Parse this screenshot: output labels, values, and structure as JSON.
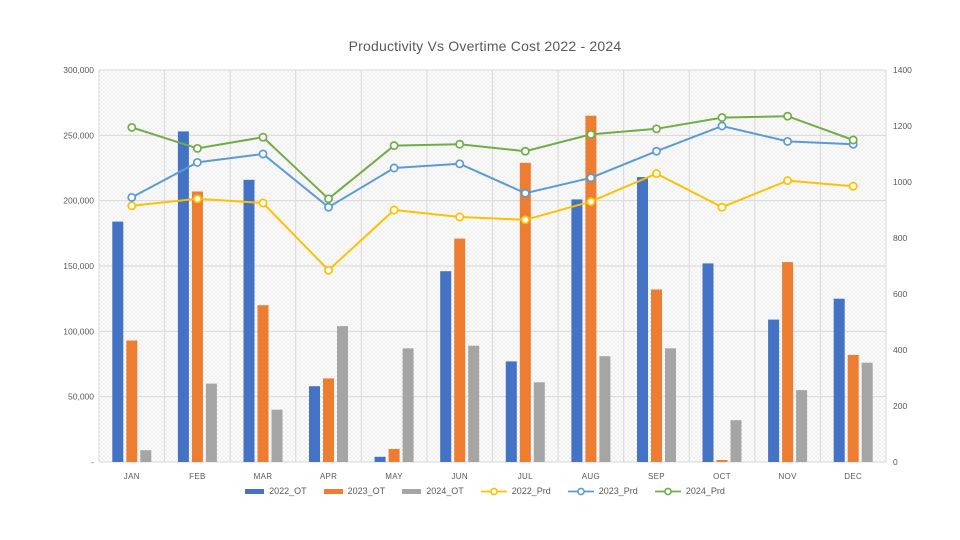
{
  "chart_data": {
    "type": "combo-bar-line",
    "title": "Productivity Vs Overtime Cost 2022 - 2024",
    "categories": [
      "JAN",
      "FEB",
      "MAR",
      "APR",
      "MAY",
      "JUN",
      "JUL",
      "AUG",
      "SEP",
      "OCT",
      "NOV",
      "DEC"
    ],
    "series": [
      {
        "name": "2022_OT",
        "type": "bar",
        "axis": "left",
        "color": "#4472C4",
        "values": [
          184000,
          253000,
          216000,
          58000,
          4000,
          146000,
          77000,
          201000,
          218000,
          152000,
          109000,
          125000
        ]
      },
      {
        "name": "2023_OT",
        "type": "bar",
        "axis": "left",
        "color": "#ED7D31",
        "values": [
          93000,
          207000,
          120000,
          64000,
          10000,
          171000,
          229000,
          265000,
          132000,
          1500,
          153000,
          82000
        ]
      },
      {
        "name": "2024_OT",
        "type": "bar",
        "axis": "left",
        "color": "#A5A5A5",
        "values": [
          9000,
          60000,
          40000,
          104000,
          87000,
          89000,
          61000,
          81000,
          87000,
          32000,
          55000,
          76000
        ]
      },
      {
        "name": "2022_Prd",
        "type": "line",
        "axis": "right",
        "color": "#FFC000",
        "values": [
          915,
          940,
          925,
          685,
          900,
          875,
          865,
          930,
          1030,
          910,
          1005,
          985
        ]
      },
      {
        "name": "2023_Prd",
        "type": "line",
        "axis": "right",
        "color": "#5B9BD5",
        "values": [
          945,
          1070,
          1100,
          910,
          1050,
          1065,
          960,
          1015,
          1110,
          1200,
          1145,
          1135
        ]
      },
      {
        "name": "2024_Prd",
        "type": "line",
        "axis": "right",
        "color": "#70AD47",
        "values": [
          1195,
          1120,
          1160,
          940,
          1130,
          1135,
          1110,
          1170,
          1190,
          1230,
          1235,
          1150
        ]
      }
    ],
    "left_axis": {
      "min": 0,
      "max": 300000,
      "step": 50000,
      "tick_labels": [
        "300,000",
        "250,000",
        "200,000",
        "150,000",
        "100,000",
        "50,000",
        "-"
      ]
    },
    "right_axis": {
      "min": 0,
      "max": 1400,
      "step": 200,
      "tick_labels": [
        "1400",
        "1200",
        "1000",
        "800",
        "600",
        "400",
        "200",
        "0"
      ]
    },
    "legend": [
      "2022_OT",
      "2023_OT",
      "2024_OT",
      "2022_Prd",
      "2023_Prd",
      "2024_Prd"
    ],
    "legend_position": "bottom",
    "grid": true,
    "plot_background": "diagonal-crosshatch"
  },
  "style_colors": {
    "title_text": "#595959",
    "axis_text": "#595959",
    "gridline": "#d9d9d9",
    "hatch": "#e7e7e7",
    "background": "#ffffff"
  }
}
